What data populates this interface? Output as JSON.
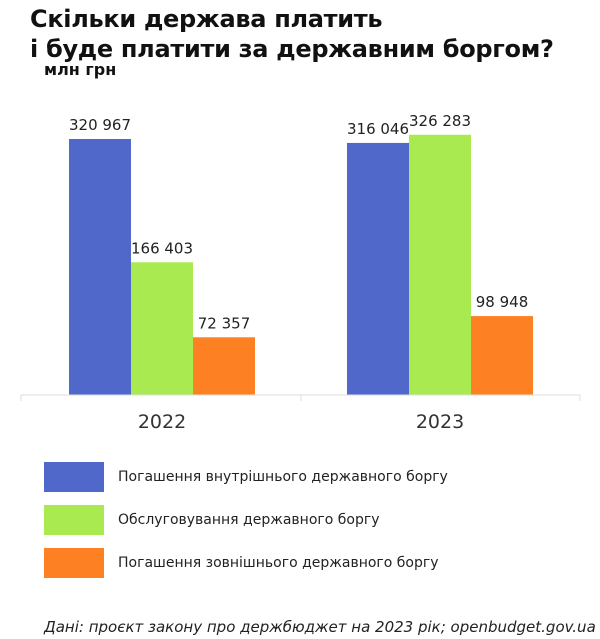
{
  "title_line1": "Скільки держава платить",
  "title_line2": "і буде платити за державним боргом?",
  "subtitle": "млн грн",
  "source": "Дані: проєкт закону про держбюджет на 2023 рік; openbudget.gov.ua",
  "chart_data": {
    "type": "bar",
    "title": "Скільки держава платить і буде платити за державним боргом?",
    "ylabel": "млн грн",
    "categories": [
      "2022",
      "2023"
    ],
    "ylim": [
      0,
      326283
    ],
    "grid": false,
    "legend_position": "bottom",
    "series": [
      {
        "name": "Погашення внутрішнього державного боргу",
        "color": "#4f68c9",
        "values": [
          320967,
          316046
        ],
        "labels": [
          "320 967",
          "316 046"
        ]
      },
      {
        "name": "Обслуговування державного боргу",
        "color": "#a8ea4f",
        "values": [
          166403,
          326283
        ],
        "labels": [
          "166 403",
          "326 283"
        ]
      },
      {
        "name": "Погашення зовнішнього державного боргу",
        "color": "#fd8023",
        "values": [
          72357,
          98948
        ],
        "labels": [
          "72 357",
          "98 948"
        ]
      }
    ]
  }
}
